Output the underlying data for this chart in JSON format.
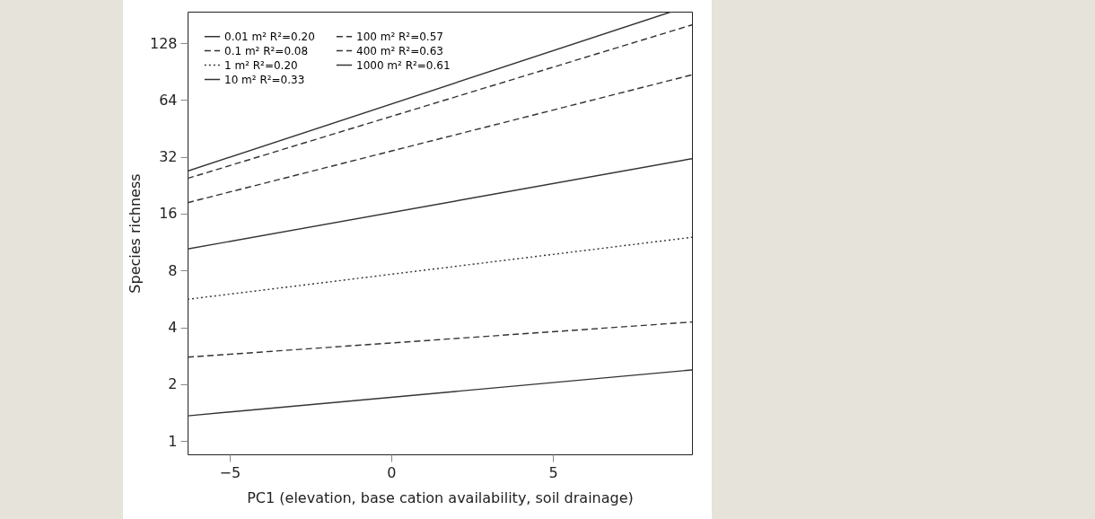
{
  "chart_data": {
    "type": "line",
    "xlabel": "PC1 (elevation, base cation availability, soil drainage)",
    "ylabel": "Species richness",
    "x": [
      -6.3,
      9.3
    ],
    "xlim": [
      -6.3,
      9.3
    ],
    "xticks": [
      -5,
      0,
      5
    ],
    "ylim": [
      0.85,
      188
    ],
    "yticks": [
      1,
      2,
      4,
      8,
      16,
      32,
      64,
      128
    ],
    "log": true,
    "grid": false,
    "legend": "top left",
    "marker": "none",
    "series": [
      {
        "name": "0.01 m²  R²=0.20",
        "color": "#333333",
        "line_style": "solid",
        "values": [
          1.36,
          2.38
        ]
      },
      {
        "name": "0.1 m²  R²=0.08",
        "color": "#333333",
        "line_style": "dashed",
        "values": [
          2.78,
          4.27
        ]
      },
      {
        "name": "1 m²  R²=0.20",
        "color": "#333333",
        "line_style": "dotted",
        "values": [
          5.63,
          12.0
        ]
      },
      {
        "name": "10 m²  R²=0.33",
        "color": "#333333",
        "line_style": "solid",
        "values": [
          10.4,
          31.3
        ]
      },
      {
        "name": "100 m²  R²=0.57",
        "color": "#333333",
        "line_style": "dashed",
        "values": [
          18.3,
          87
        ]
      },
      {
        "name": "400 m²  R²=0.63",
        "color": "#333333",
        "line_style": "dashed",
        "values": [
          24.6,
          160
        ]
      },
      {
        "name": "1000 m²  R²=0.61",
        "color": "#333333",
        "line_style": "solid",
        "x": [
          -6.3,
          8.67
        ],
        "values": [
          26.9,
          188
        ]
      }
    ]
  }
}
